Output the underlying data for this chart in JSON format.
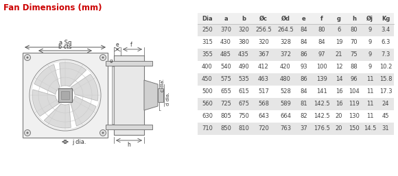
{
  "title": "Fan Dimensions (mm)",
  "title_color": "#cc0000",
  "headers": [
    "Dia",
    "a",
    "b",
    "Øc",
    "Ød",
    "e",
    "f",
    "g",
    "h",
    "Øj",
    "Kg"
  ],
  "rows": [
    [
      "250",
      "370",
      "320",
      "256.5",
      "264.5",
      "84",
      "80",
      "6",
      "80",
      "9",
      "3.4"
    ],
    [
      "315",
      "430",
      "380",
      "320",
      "328",
      "84",
      "84",
      "19",
      "70",
      "9",
      "6.3"
    ],
    [
      "355",
      "485",
      "435",
      "367",
      "372",
      "86",
      "97",
      "21",
      "75",
      "9",
      "7.3"
    ],
    [
      "400",
      "540",
      "490",
      "412",
      "420",
      "93",
      "100",
      "12",
      "88",
      "9",
      "10.2"
    ],
    [
      "450",
      "575",
      "535",
      "463",
      "480",
      "86",
      "139",
      "14",
      "96",
      "11",
      "15.8"
    ],
    [
      "500",
      "655",
      "615",
      "517",
      "528",
      "84",
      "141",
      "16",
      "104",
      "11",
      "17.3"
    ],
    [
      "560",
      "725",
      "675",
      "568",
      "589",
      "81",
      "142.5",
      "16",
      "119",
      "11",
      "24"
    ],
    [
      "630",
      "805",
      "750",
      "643",
      "664",
      "82",
      "142.5",
      "20",
      "130",
      "11",
      "45"
    ],
    [
      "710",
      "850",
      "810",
      "720",
      "763",
      "37",
      "176.5",
      "20",
      "150",
      "14.5",
      "31"
    ]
  ],
  "shaded_rows": [
    0,
    2,
    4,
    6,
    8
  ],
  "shaded_color": "#e6e6e6",
  "bg_color": "#ffffff",
  "text_color": "#444444",
  "header_color": "#444444",
  "diagram_labels": {
    "a_sq": "a Sq",
    "b_cts": "b cts",
    "e": "e",
    "f": "f",
    "g": "g",
    "c_dia": "c dia.",
    "d_dia": "d dia.",
    "h": "h",
    "j_dia": "j dia."
  },
  "line_color": "#888888",
  "dim_color": "#555555"
}
